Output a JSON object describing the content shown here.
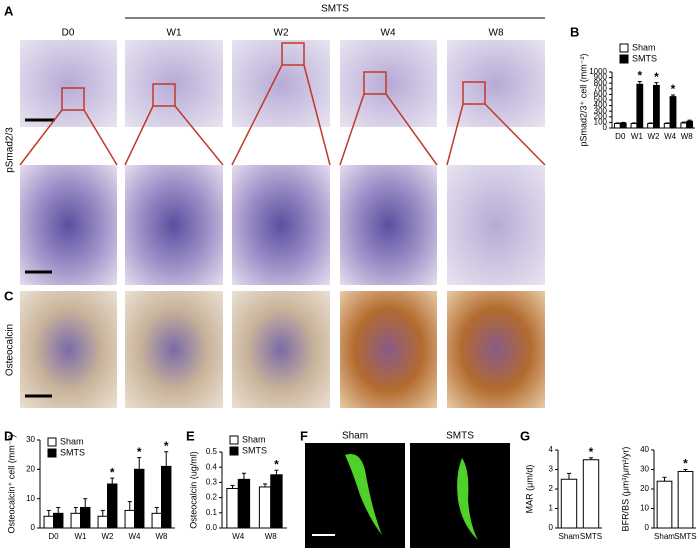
{
  "panels": {
    "A": {
      "letter": "A",
      "group_label": "SMTS",
      "columns": [
        "D0",
        "W1",
        "W2",
        "W4",
        "W8"
      ],
      "row_label": "pSmad2/3"
    },
    "C": {
      "letter": "C",
      "row_label": "Osteocalcin"
    },
    "F": {
      "letter": "F",
      "labels": [
        "Sham",
        "SMTS"
      ]
    }
  },
  "chart_data": [
    {
      "type": "bar",
      "panel": "B",
      "y_label": "pSmad2/3⁺ cell (mm⁻²)",
      "categories": [
        "D0",
        "W1",
        "W2",
        "W4",
        "W8"
      ],
      "series": [
        {
          "name": "Sham",
          "color": "#ffffff",
          "values": [
            80,
            80,
            80,
            80,
            90
          ],
          "errors": [
            10,
            10,
            10,
            10,
            15
          ]
        },
        {
          "name": "SMTS",
          "color": "#000000",
          "values": [
            90,
            780,
            760,
            560,
            120
          ],
          "errors": [
            10,
            50,
            50,
            30,
            20
          ],
          "significance": [
            null,
            "*",
            "*",
            "*",
            null
          ]
        }
      ],
      "ylim": [
        0,
        1000
      ],
      "yticks": [
        0,
        100,
        200,
        300,
        400,
        500,
        600,
        700,
        800,
        900,
        1000
      ]
    },
    {
      "type": "bar",
      "panel": "D",
      "y_label": "Osteocalcin⁺ cell (mm⁻²)",
      "categories": [
        "D0",
        "W1",
        "W2",
        "W4",
        "W8"
      ],
      "series": [
        {
          "name": "Sham",
          "color": "#ffffff",
          "values": [
            4,
            5,
            4,
            6,
            5
          ],
          "errors": [
            2,
            2,
            2,
            3,
            2
          ]
        },
        {
          "name": "SMTS",
          "color": "#000000",
          "values": [
            5,
            7,
            15,
            20,
            21
          ],
          "errors": [
            2,
            3,
            2,
            4,
            5
          ],
          "significance": [
            null,
            null,
            "*",
            "*",
            "*"
          ]
        }
      ],
      "ylim": [
        0,
        30
      ],
      "yticks": [
        0,
        10,
        20,
        30
      ]
    },
    {
      "type": "bar",
      "panel": "E",
      "y_label": "Osteocalcin (ug/ml)",
      "categories": [
        "W4",
        "W8"
      ],
      "series": [
        {
          "name": "Sham",
          "color": "#ffffff",
          "values": [
            0.26,
            0.27
          ],
          "errors": [
            0.02,
            0.02
          ]
        },
        {
          "name": "SMTS",
          "color": "#000000",
          "values": [
            0.32,
            0.35
          ],
          "errors": [
            0.04,
            0.03
          ],
          "significance": [
            null,
            "*"
          ]
        }
      ],
      "ylim": [
        0,
        0.5
      ],
      "yticks": [
        {
          "value": 0,
          "label": "0.0"
        },
        0.1,
        0.2,
        0.3,
        0.4,
        0.5
      ]
    },
    {
      "type": "bar",
      "panel": "G",
      "y_label": "MAR (μm/d)",
      "categories": [
        "Sham",
        "SMTS"
      ],
      "color": "#ffffff",
      "values": [
        2.5,
        3.5
      ],
      "errors": [
        0.3,
        0.1
      ],
      "significance": [
        null,
        "*"
      ],
      "ylim": [
        0,
        4
      ],
      "yticks": [
        0,
        1,
        2,
        3,
        4
      ]
    },
    {
      "type": "bar",
      "y_label": "BFR/BS (μm³/μm²/yr)",
      "categories": [
        "Sham",
        "SMTS"
      ],
      "color": "#ffffff",
      "values": [
        24,
        29
      ],
      "errors": [
        2,
        1
      ],
      "significance": [
        null,
        "*"
      ],
      "ylim": [
        0,
        40
      ],
      "yticks": [
        0,
        10,
        20,
        30,
        40
      ]
    }
  ]
}
